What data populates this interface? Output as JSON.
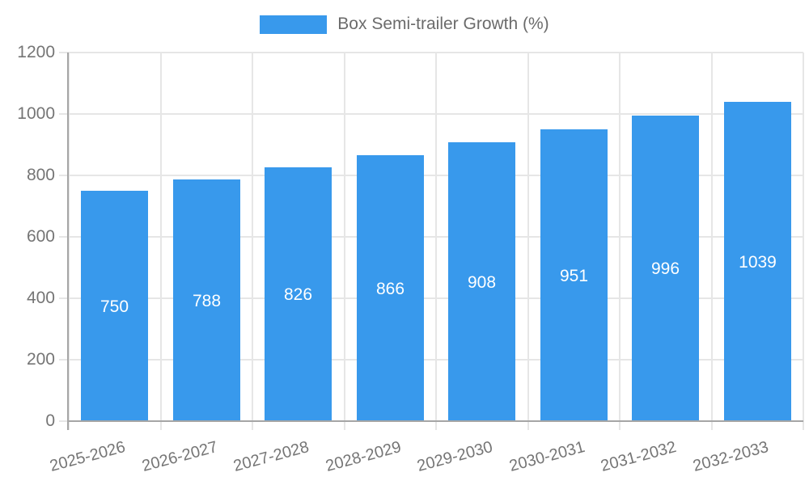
{
  "legend": {
    "label": "Box Semi-trailer Growth (%)"
  },
  "chart_data": {
    "type": "bar",
    "title": "Box Semi-trailer Growth (%)",
    "categories": [
      "2025-2026",
      "2026-2027",
      "2027-2028",
      "2028-2029",
      "2029-2030",
      "2030-2031",
      "2031-2032",
      "2032-2033"
    ],
    "values": [
      750,
      788,
      826,
      866,
      908,
      951,
      996,
      1039
    ],
    "xlabel": "",
    "ylabel": "",
    "ylim": [
      0,
      1200
    ],
    "yticks": [
      0,
      200,
      400,
      600,
      800,
      1000,
      1200
    ],
    "grid": true,
    "legend_position": "top",
    "value_labels": "inside-center",
    "colors": {
      "bar": "#3899EC",
      "gridline": "#E6E6E6",
      "axis": "#A6A6A6",
      "tick_text": "#757575",
      "legend_text": "#6B6B6B",
      "value_text": "#FFFFFF"
    }
  }
}
